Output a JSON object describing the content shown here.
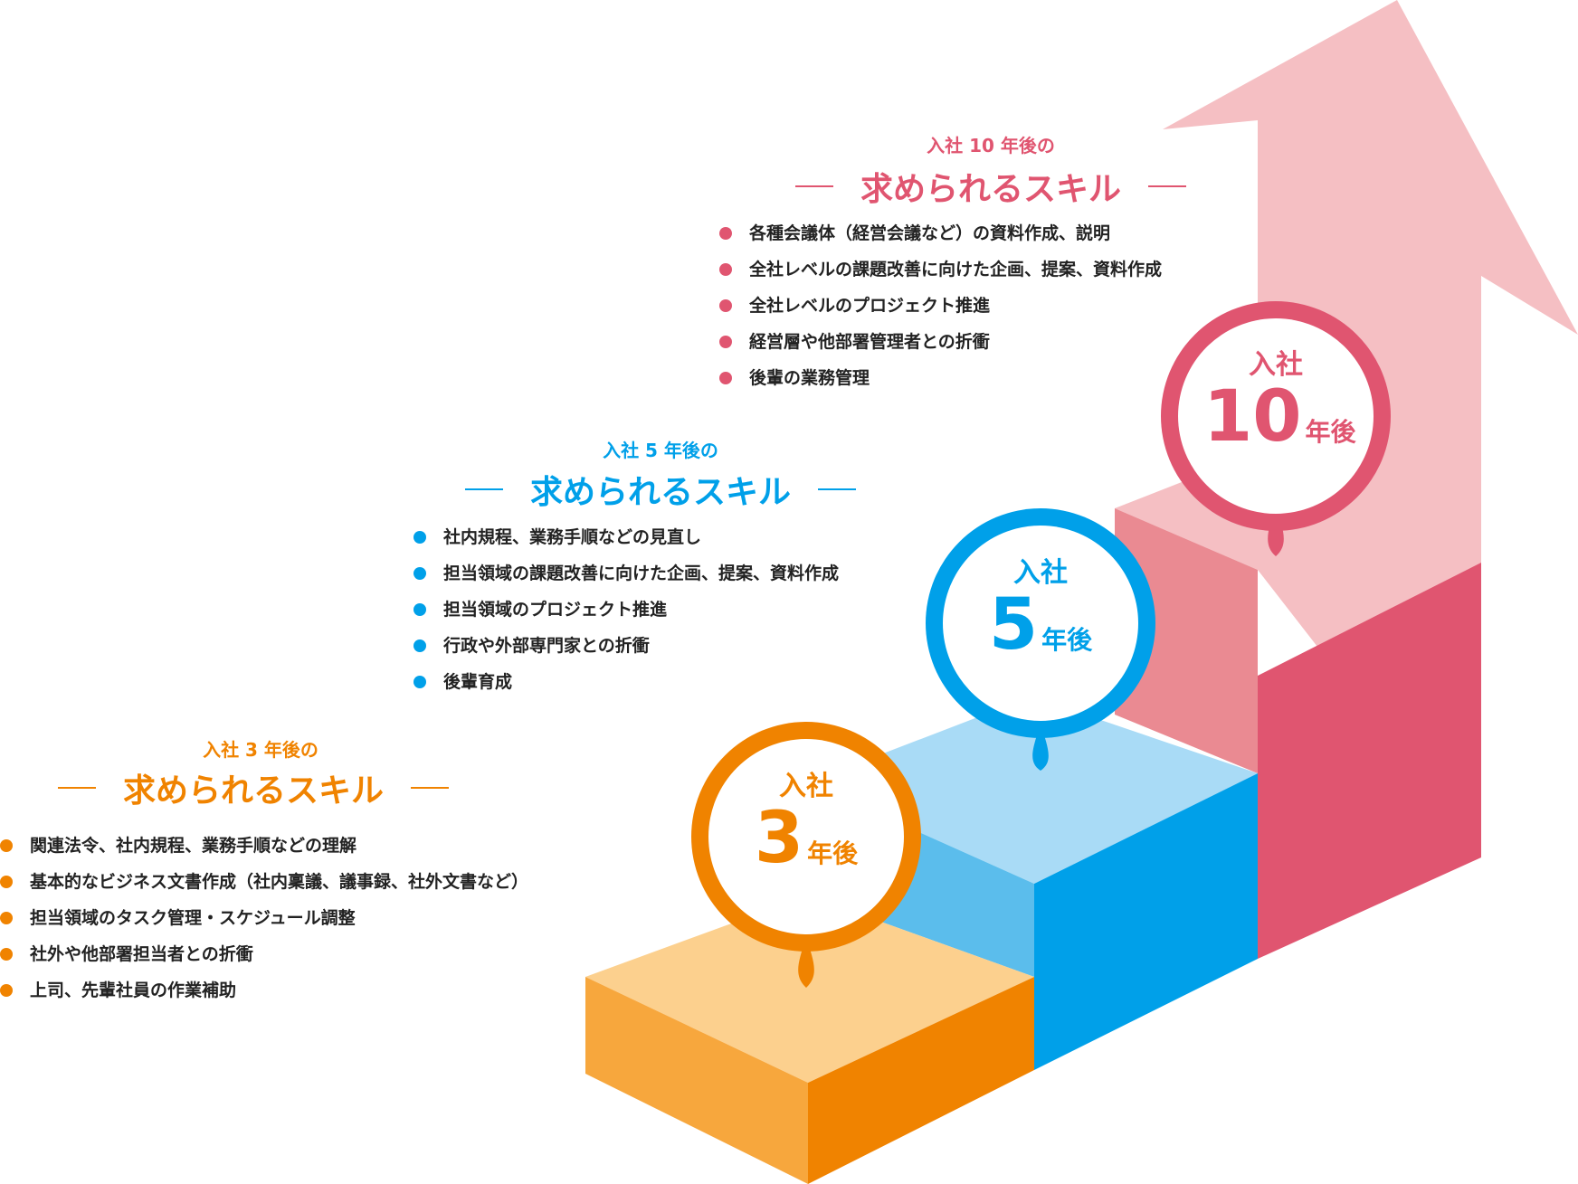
{
  "colors": {
    "orange": "#f08300",
    "blue": "#00a0e9",
    "red": "#e05570",
    "arrow": "#f5bfc3",
    "text": "#222222"
  },
  "stages": {
    "y3": {
      "eyebrow": "入社 3 年後の",
      "heading": "求められるスキル",
      "badge": {
        "top": "入社",
        "num": "3",
        "suffix": "年後"
      },
      "skills": [
        "関連法令、社内規程、業務手順などの理解",
        "基本的なビジネス文書作成（社内稟議、議事録、社外文書など）",
        "担当領域のタスク管理・スケジュール調整",
        "社外や他部署担当者との折衝",
        "上司、先輩社員の作業補助"
      ]
    },
    "y5": {
      "eyebrow": "入社 5 年後の",
      "heading": "求められるスキル",
      "badge": {
        "top": "入社",
        "num": "5",
        "suffix": "年後"
      },
      "skills": [
        "社内規程、業務手順などの見直し",
        "担当領域の課題改善に向けた企画、提案、資料作成",
        "担当領域のプロジェクト推進",
        "行政や外部専門家との折衝",
        "後輩育成"
      ]
    },
    "y10": {
      "eyebrow": "入社 10 年後の",
      "heading": "求められるスキル",
      "badge": {
        "top": "入社",
        "num": "10",
        "suffix": "年後"
      },
      "skills": [
        "各種会議体（経営会議など）の資料作成、説明",
        "全社レベルの課題改善に向けた企画、提案、資料作成",
        "全社レベルのプロジェクト推進",
        "経営層や他部署管理者との折衝",
        "後輩の業務管理"
      ]
    }
  }
}
